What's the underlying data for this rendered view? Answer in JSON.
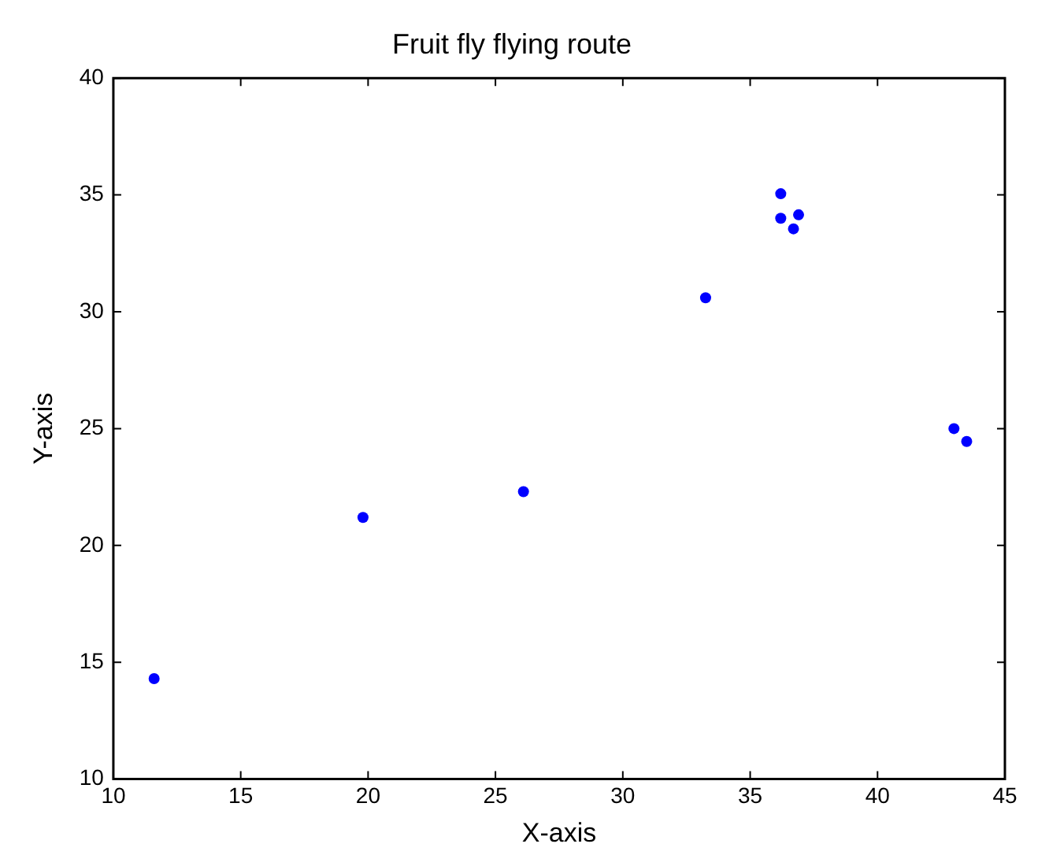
{
  "chart_data": {
    "type": "scatter",
    "title": "Fruit fly flying route",
    "xlabel": "X-axis",
    "ylabel": "Y-axis",
    "x": [
      11.6,
      19.8,
      26.1,
      33.25,
      36.2,
      36.2,
      36.9,
      36.7,
      43.0,
      43.5
    ],
    "series": [
      {
        "color": "#0000ff",
        "values": [
          14.3,
          21.2,
          22.3,
          30.6,
          35.05,
          34.0,
          34.15,
          33.55,
          25.0,
          24.45
        ]
      }
    ],
    "xlim": [
      10,
      45
    ],
    "xticks": [
      10,
      15,
      20,
      25,
      30,
      35,
      40,
      45
    ],
    "ylim": [
      10,
      40
    ],
    "yticks": [
      10,
      15,
      20,
      25,
      30,
      35,
      40
    ],
    "grid": false,
    "legend": false,
    "marker": "circle"
  }
}
